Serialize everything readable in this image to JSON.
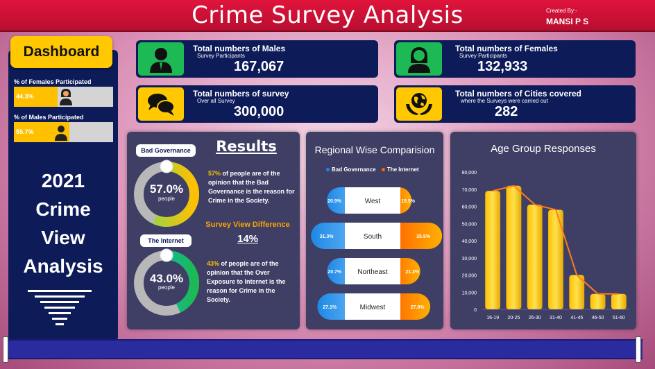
{
  "header": {
    "title": "Crime Survey Analysis",
    "credit_label": "Created By:-",
    "credit_name": "MANSI P S"
  },
  "sidebar": {
    "dashboard_label": "Dashboard",
    "female_label": "% of Females Participated",
    "female_value": "44.3%",
    "female_fraction": 0.443,
    "male_label": "% of Males Participated",
    "male_value": "55.7%",
    "male_fraction": 0.557,
    "title_lines": [
      "2021",
      "Crime",
      "View",
      "Analysis"
    ]
  },
  "kpis": {
    "males": {
      "title": "Total numbers of Males",
      "sub": "Survey Participants",
      "value": "167,067",
      "icon": "male-user-icon"
    },
    "females": {
      "title": "Total numbers of Females",
      "sub": "Survey Participants",
      "value": "132,933",
      "icon": "female-user-icon"
    },
    "survey": {
      "title": "Total numbers of survey",
      "sub": "Over all Survey",
      "value": "300,000",
      "icon": "chat-bubbles-icon"
    },
    "cities": {
      "title": "Total numbers of Cities covered",
      "sub": "where the Surveys were carried out",
      "value": "282",
      "icon": "globe-hands-icon"
    }
  },
  "results": {
    "title": "Results",
    "bad_gov": {
      "label": "Bad Governance",
      "value": "57.0%",
      "fraction": 0.57,
      "unit": "people",
      "pct": "57%",
      "text": " of people are of the opinion that the Bad Governance is the reason for Crime in the Society."
    },
    "diff_label": "Survey View Difference",
    "diff_value": "14%",
    "internet": {
      "label": "The Internet",
      "value": "43.0%",
      "fraction": 0.43,
      "unit": "people",
      "pct": "43%",
      "text": " of people are of the opinion that the Over Exposure to Internet is the reason for Crime in the Society."
    }
  },
  "colors": {
    "navy": "#0d1b59",
    "gold": "#ffc000",
    "green_icon": "#1db954",
    "yellow_icon": "#ffc800",
    "blue_grad": "#1e88e5",
    "orange_grad": "#ff4d00"
  },
  "chart_data": [
    {
      "type": "bar",
      "title": "Regional Wise Comparision",
      "categories": [
        "West",
        "South",
        "Northeast",
        "Midwest"
      ],
      "series": [
        {
          "name": "Bad Governance",
          "values": [
            20.9,
            31.3,
            20.7,
            27.1
          ],
          "labels": [
            "20.9%",
            "31.3%",
            "20.7%",
            "27.1%"
          ]
        },
        {
          "name": "The Internet",
          "values": [
            15.5,
            35.5,
            21.2,
            27.8
          ],
          "labels": [
            "15.5%",
            "35.5%",
            "21.2%",
            "27.8%"
          ]
        }
      ]
    },
    {
      "type": "bar",
      "title": "Age Group Responses",
      "categories": [
        "16-19",
        "20-25",
        "26-30",
        "31-40",
        "41-45",
        "46-50",
        "51-60"
      ],
      "values": [
        69000,
        72000,
        61000,
        58000,
        20000,
        9000,
        9000
      ],
      "ylim": [
        0,
        80000
      ],
      "yticks": [
        "0",
        "10,000",
        "20,000",
        "30,000",
        "40,000",
        "50,000",
        "60,000",
        "70,000",
        "80,000"
      ],
      "overlay_line": true
    }
  ]
}
